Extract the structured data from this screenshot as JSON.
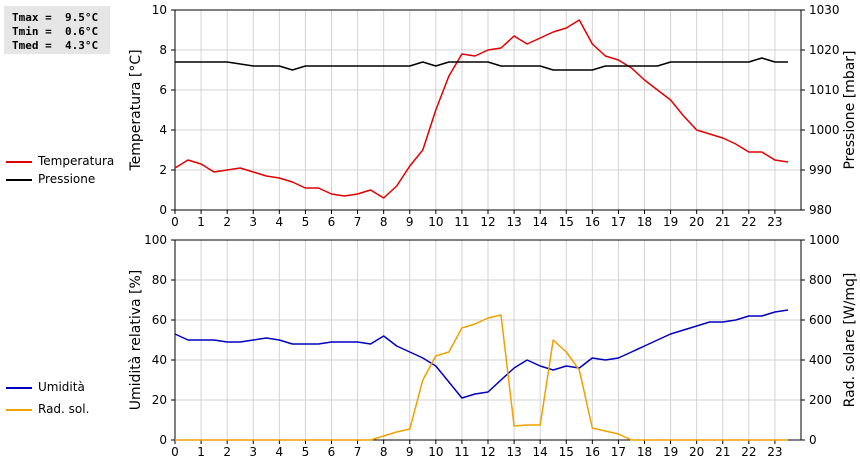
{
  "stats": {
    "tmax": "Tmax =  9.5°C",
    "tmin": "Tmin =  0.6°C",
    "tmed": "Tmed =  4.3°C"
  },
  "chart_data": [
    {
      "type": "line",
      "x_ticks": [
        0,
        1,
        2,
        3,
        4,
        5,
        6,
        7,
        8,
        9,
        10,
        11,
        12,
        13,
        14,
        15,
        16,
        17,
        18,
        19,
        20,
        21,
        22,
        23
      ],
      "xlim": [
        0,
        24
      ],
      "ylabel": "Temperatura [°C]",
      "ylim": [
        0,
        10
      ],
      "y_ticks": [
        0,
        2,
        4,
        6,
        8,
        10
      ],
      "y2label": "Pressione [mbar]",
      "y2lim": [
        980,
        1030
      ],
      "y2_ticks": [
        980,
        990,
        1000,
        1010,
        1020,
        1030
      ],
      "grid": true,
      "legend_position": "left",
      "series": [
        {
          "name": "Temperatura",
          "color": "#e00000",
          "axis": "left",
          "x": [
            0,
            0.5,
            1,
            1.5,
            2,
            2.5,
            3,
            3.5,
            4,
            4.5,
            5,
            5.5,
            6,
            6.5,
            7,
            7.5,
            8,
            8.5,
            9,
            9.5,
            10,
            10.5,
            11,
            11.5,
            12,
            12.5,
            13,
            13.5,
            14,
            14.5,
            15,
            15.5,
            16,
            16.5,
            17,
            17.5,
            18,
            18.5,
            19,
            19.5,
            20,
            20.5,
            21,
            21.5,
            22,
            22.5,
            23,
            23.5
          ],
          "y": [
            2.1,
            2.5,
            2.3,
            1.9,
            2.0,
            2.1,
            1.9,
            1.7,
            1.6,
            1.4,
            1.1,
            1.1,
            0.8,
            0.7,
            0.8,
            1.0,
            0.6,
            1.2,
            2.2,
            3.0,
            5.0,
            6.7,
            7.8,
            7.7,
            8.0,
            8.1,
            8.7,
            8.3,
            8.6,
            8.9,
            9.1,
            9.5,
            8.3,
            7.7,
            7.5,
            7.1,
            6.5,
            6.0,
            5.5,
            4.7,
            4.0,
            3.8,
            3.6,
            3.3,
            2.9,
            2.9,
            2.5,
            2.4
          ]
        },
        {
          "name": "Pressione",
          "color": "#000000",
          "axis": "right",
          "x": [
            0,
            1,
            2,
            3,
            3.5,
            4,
            4.5,
            5,
            6,
            7,
            8,
            9,
            9.5,
            10,
            10.5,
            11,
            12,
            12.5,
            14,
            14.5,
            15,
            15.5,
            16,
            16.5,
            17,
            18,
            18.5,
            19,
            20,
            21,
            22,
            22.5,
            23,
            23.5
          ],
          "y": [
            1017,
            1017,
            1017,
            1016,
            1016,
            1016,
            1015,
            1016,
            1016,
            1016,
            1016,
            1016,
            1017,
            1016,
            1017,
            1017,
            1017,
            1016,
            1016,
            1015,
            1015,
            1015,
            1015,
            1016,
            1016,
            1016,
            1016,
            1017,
            1017,
            1017,
            1017,
            1018,
            1017,
            1017
          ]
        }
      ]
    },
    {
      "type": "line",
      "x_ticks": [
        0,
        1,
        2,
        3,
        4,
        5,
        6,
        7,
        8,
        9,
        10,
        11,
        12,
        13,
        14,
        15,
        16,
        17,
        18,
        19,
        20,
        21,
        22,
        23
      ],
      "xlim": [
        0,
        24
      ],
      "ylabel": "Umidità relativa [%]",
      "ylim": [
        0,
        100
      ],
      "y_ticks": [
        0,
        20,
        40,
        60,
        80,
        100
      ],
      "y2label": "Rad. solare [W/mq]",
      "y2lim": [
        0,
        1000
      ],
      "y2_ticks": [
        0,
        200,
        400,
        600,
        800,
        1000
      ],
      "grid": true,
      "legend_position": "left",
      "series": [
        {
          "name": "Umidità",
          "color": "#0000c0",
          "axis": "left",
          "x": [
            0,
            0.5,
            1,
            1.5,
            2,
            2.5,
            3,
            3.5,
            4,
            4.5,
            5,
            5.5,
            6,
            6.5,
            7,
            7.5,
            8,
            8.5,
            9,
            9.5,
            10,
            10.5,
            11,
            11.5,
            12,
            12.5,
            13,
            13.5,
            14,
            14.5,
            15,
            15.5,
            16,
            16.5,
            17,
            17.5,
            18,
            18.5,
            19,
            19.5,
            20,
            20.5,
            21,
            21.5,
            22,
            22.5,
            23,
            23.5
          ],
          "y": [
            53,
            50,
            50,
            50,
            49,
            49,
            50,
            51,
            50,
            48,
            48,
            48,
            49,
            49,
            49,
            48,
            52,
            47,
            44,
            41,
            37,
            29,
            21,
            23,
            24,
            30,
            36,
            40,
            37,
            35,
            37,
            36,
            41,
            40,
            41,
            44,
            47,
            50,
            53,
            55,
            57,
            59,
            59,
            60,
            62,
            62,
            64,
            65
          ]
        },
        {
          "name": "Rad. sol.",
          "color": "#f0a000",
          "axis": "right",
          "x": [
            0,
            1,
            2,
            3,
            4,
            5,
            6,
            7,
            7.5,
            8,
            8.5,
            9,
            9.5,
            10,
            10.5,
            11,
            11.5,
            12,
            12.5,
            13,
            13.5,
            14,
            14.5,
            15,
            15.5,
            16,
            16.5,
            17,
            17.5,
            18,
            19,
            20,
            21,
            22,
            23,
            23.5
          ],
          "y": [
            0,
            0,
            0,
            0,
            0,
            0,
            0,
            0,
            0,
            20,
            40,
            55,
            300,
            420,
            440,
            560,
            580,
            610,
            625,
            70,
            75,
            75,
            500,
            440,
            350,
            60,
            45,
            30,
            0,
            0,
            0,
            0,
            0,
            0,
            0,
            0
          ]
        }
      ]
    }
  ]
}
